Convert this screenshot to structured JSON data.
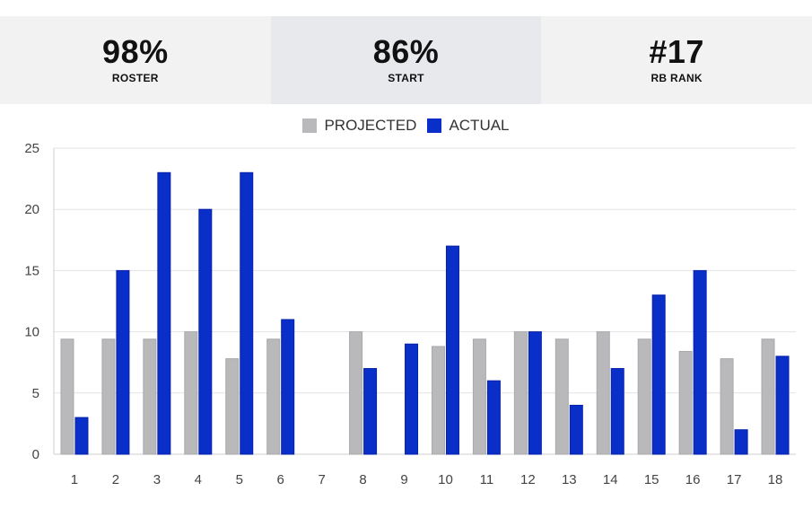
{
  "stats": [
    {
      "value": "98%",
      "label": "ROSTER"
    },
    {
      "value": "86%",
      "label": "START"
    },
    {
      "value": "#17",
      "label": "RB RANK"
    }
  ],
  "chart_data": {
    "type": "bar",
    "categories": [
      "1",
      "2",
      "3",
      "4",
      "5",
      "6",
      "7",
      "8",
      "9",
      "10",
      "11",
      "12",
      "13",
      "14",
      "15",
      "16",
      "17",
      "18"
    ],
    "series": [
      {
        "name": "PROJECTED",
        "color": "#b9b9bc",
        "values": [
          9.4,
          9.4,
          9.4,
          10,
          7.8,
          9.4,
          null,
          10,
          null,
          8.8,
          9.4,
          10,
          9.4,
          10,
          9.4,
          8.4,
          7.8,
          9.4
        ]
      },
      {
        "name": "ACTUAL",
        "color": "#0a2fc9",
        "values": [
          3,
          15,
          23,
          20,
          23,
          11,
          null,
          7,
          9,
          17,
          6,
          10,
          4,
          7,
          13,
          15,
          2,
          8
        ]
      }
    ],
    "ylim": [
      0,
      25
    ],
    "yticks": [
      0,
      5,
      10,
      15,
      20,
      25
    ],
    "grid": true,
    "legend_position": "top-center"
  }
}
